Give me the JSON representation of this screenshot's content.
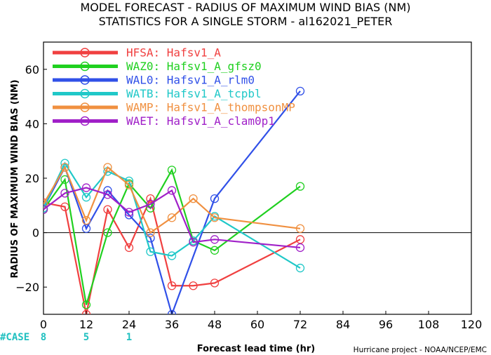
{
  "title_line1": "MODEL FORECAST - RADIUS OF MAXIMUM WIND BIAS (NM)",
  "title_line2": "STATISTICS FOR A SINGLE STORM - al162021_PETER",
  "credit": "Hurricane project - NOAA/NCEP/EMC",
  "case_label": "#CASE",
  "case_counts": [
    {
      "x": 0,
      "label": "8"
    },
    {
      "x": 12,
      "label": "5"
    },
    {
      "x": 24,
      "label": "1"
    }
  ],
  "chart_data": {
    "type": "line",
    "title": "MODEL FORECAST - RADIUS OF MAXIMUM WIND BIAS (NM)",
    "subtitle": "STATISTICS FOR A SINGLE STORM - al162021_PETER",
    "xlabel": "Forecast lead time (hr)",
    "ylabel": "RADIUS OF MAXIMUM WIND BIAS (NM)",
    "xlim": [
      0,
      120
    ],
    "ylim": [
      -30,
      70
    ],
    "xticks": [
      0,
      12,
      24,
      36,
      48,
      60,
      72,
      84,
      96,
      108,
      120
    ],
    "yticks": [
      -20,
      0,
      20,
      40,
      60
    ],
    "zero_line": true,
    "legend_position": "top-left",
    "series": [
      {
        "name": "HFSA: Hafsv1_A",
        "color": "#f04040",
        "points": [
          [
            0,
            11
          ],
          [
            6,
            9.5
          ],
          [
            12,
            -30
          ],
          [
            18,
            8.5
          ],
          [
            24,
            -5.5
          ],
          [
            30,
            12.5
          ],
          [
            36,
            -19.5
          ],
          [
            42,
            -19.5
          ],
          [
            48,
            -18.5
          ],
          [
            72,
            -2.5
          ]
        ]
      },
      {
        "name": "WAZ0: Hafsv1_A_gfsz0",
        "color": "#20d020",
        "points": [
          [
            0,
            8.5
          ],
          [
            6,
            19.5
          ],
          [
            12,
            -26.5
          ],
          [
            18,
            0
          ],
          [
            24,
            18
          ],
          [
            30,
            9
          ],
          [
            36,
            23
          ],
          [
            42,
            -3
          ],
          [
            48,
            -6.5
          ],
          [
            72,
            17
          ]
        ]
      },
      {
        "name": "WAL0: Hafsv1_A_rlm0",
        "color": "#3050e8",
        "points": [
          [
            0,
            9
          ],
          [
            6,
            24
          ],
          [
            12,
            1.5
          ],
          [
            18,
            15.5
          ],
          [
            24,
            6.5
          ],
          [
            30,
            -2
          ],
          [
            36,
            -30
          ],
          [
            48,
            12.5
          ],
          [
            72,
            52
          ]
        ]
      },
      {
        "name": "WATB: Hafsv1_A_tcpbl",
        "color": "#20c8c8",
        "points": [
          [
            0,
            9
          ],
          [
            6,
            25.5
          ],
          [
            12,
            13
          ],
          [
            18,
            22.5
          ],
          [
            24,
            19
          ],
          [
            30,
            -7
          ],
          [
            36,
            -8.5
          ],
          [
            42,
            -3
          ],
          [
            48,
            6
          ],
          [
            72,
            -13
          ]
        ]
      },
      {
        "name": "WAMP: Hafsv1_A_thompsonMP",
        "color": "#f09040",
        "points": [
          [
            0,
            10.5
          ],
          [
            6,
            24
          ],
          [
            12,
            4.5
          ],
          [
            18,
            24
          ],
          [
            24,
            17.5
          ],
          [
            30,
            0
          ],
          [
            36,
            5.5
          ],
          [
            42,
            12.5
          ],
          [
            48,
            5.5
          ],
          [
            72,
            1.5
          ]
        ]
      },
      {
        "name": "WAET: Hafsv1_A_clam0p1",
        "color": "#a020c8",
        "points": [
          [
            0,
            8.5
          ],
          [
            6,
            14.5
          ],
          [
            12,
            16.5
          ],
          [
            18,
            14
          ],
          [
            24,
            7.5
          ],
          [
            30,
            10.5
          ],
          [
            36,
            15.5
          ],
          [
            42,
            -3.5
          ],
          [
            48,
            -2.5
          ],
          [
            72,
            -5.5
          ]
        ]
      }
    ]
  }
}
